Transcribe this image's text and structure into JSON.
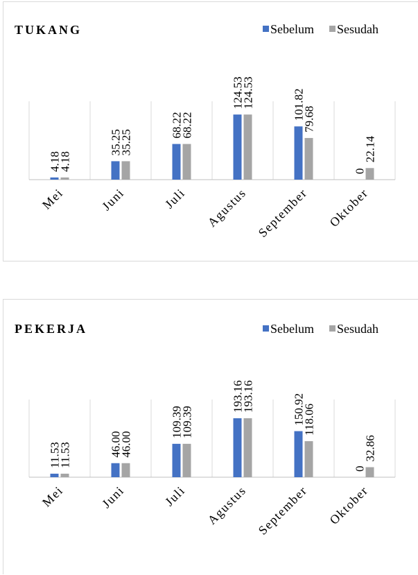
{
  "colors": {
    "sebelum": "#4472c4",
    "sesudah": "#a5a5a5",
    "grid": "#d9d9d9",
    "axis": "#bfbfbf"
  },
  "chart_data": [
    {
      "type": "bar",
      "title": "TUKANG",
      "categories": [
        "Mei",
        "Juni",
        "Juli",
        "Agustus",
        "September",
        "Oktober"
      ],
      "series": [
        {
          "name": "Sebelum",
          "values": [
            4.18,
            35.25,
            68.22,
            124.53,
            101.82,
            0
          ],
          "labels": [
            "4.18",
            "35.25",
            "68.22",
            "124.53",
            "101.82",
            "0"
          ]
        },
        {
          "name": "Sesudah",
          "values": [
            4.18,
            35.25,
            68.22,
            124.53,
            79.68,
            22.14
          ],
          "labels": [
            "4.18",
            "35.25",
            "68.22",
            "124.53",
            "79.68",
            "22.14"
          ]
        }
      ],
      "ylim": [
        0,
        130
      ],
      "legend": "top-right",
      "grid": "vertical"
    },
    {
      "type": "bar",
      "title": "PEKERJA",
      "categories": [
        "Mei",
        "Juni",
        "Juli",
        "Agustus",
        "September",
        "Oktober"
      ],
      "series": [
        {
          "name": "Sebelum",
          "values": [
            11.53,
            46.0,
            109.39,
            193.16,
            150.92,
            0
          ],
          "labels": [
            "11.53",
            "46.00",
            "109.39",
            "193.16",
            "150.92",
            "0"
          ]
        },
        {
          "name": "Sesudah",
          "values": [
            11.53,
            46.0,
            109.39,
            193.16,
            118.06,
            32.86
          ],
          "labels": [
            "11.53",
            "46.00",
            "109.39",
            "193.16",
            "118.06",
            "32.86"
          ]
        }
      ],
      "ylim": [
        0,
        200
      ],
      "legend": "top-right",
      "grid": "vertical"
    }
  ]
}
